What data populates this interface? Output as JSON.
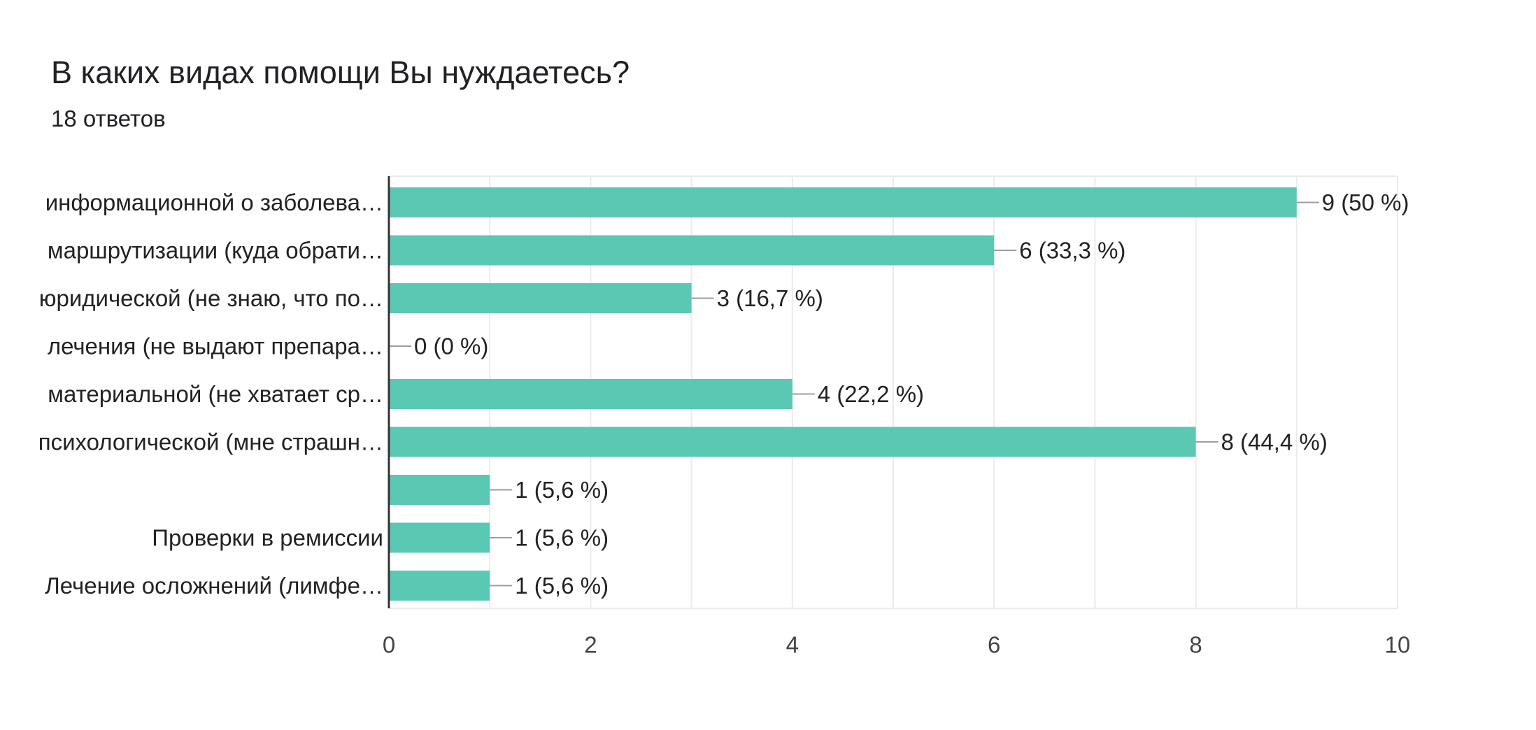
{
  "header": {
    "title": "В каких видах помощи Вы нуждаетесь?",
    "responses": "18 ответов"
  },
  "colors": {
    "bar": "#5bc8b3",
    "axis": "#333333",
    "grid": "#ebebeb",
    "connector": "#9e9e9e",
    "text": "#222222",
    "tick": "#444444"
  },
  "chart_data": {
    "type": "bar",
    "orientation": "horizontal",
    "categories": [
      "информационной о заболева…",
      "маршрутизации (куда обрати…",
      "юридической (не знаю, что по…",
      "лечения (не выдают препара…",
      "материальной (не хватает ср…",
      "психологической (мне страшн…",
      "",
      "Проверки в ремиссии",
      "Лечение осложнений (лимфе…"
    ],
    "values": [
      9,
      6,
      3,
      0,
      4,
      8,
      1,
      1,
      1
    ],
    "data_labels": [
      "9 (50 %)",
      "6 (33,3 %)",
      "3 (16,7 %)",
      "0 (0 %)",
      "4 (22,2 %)",
      "8 (44,4 %)",
      "1 (5,6 %)",
      "1 (5,6 %)",
      "1 (5,6 %)"
    ],
    "xlim": [
      0,
      10
    ],
    "x_ticks": [
      0,
      2,
      4,
      6,
      8,
      10
    ],
    "grid": true,
    "legend": "none"
  }
}
